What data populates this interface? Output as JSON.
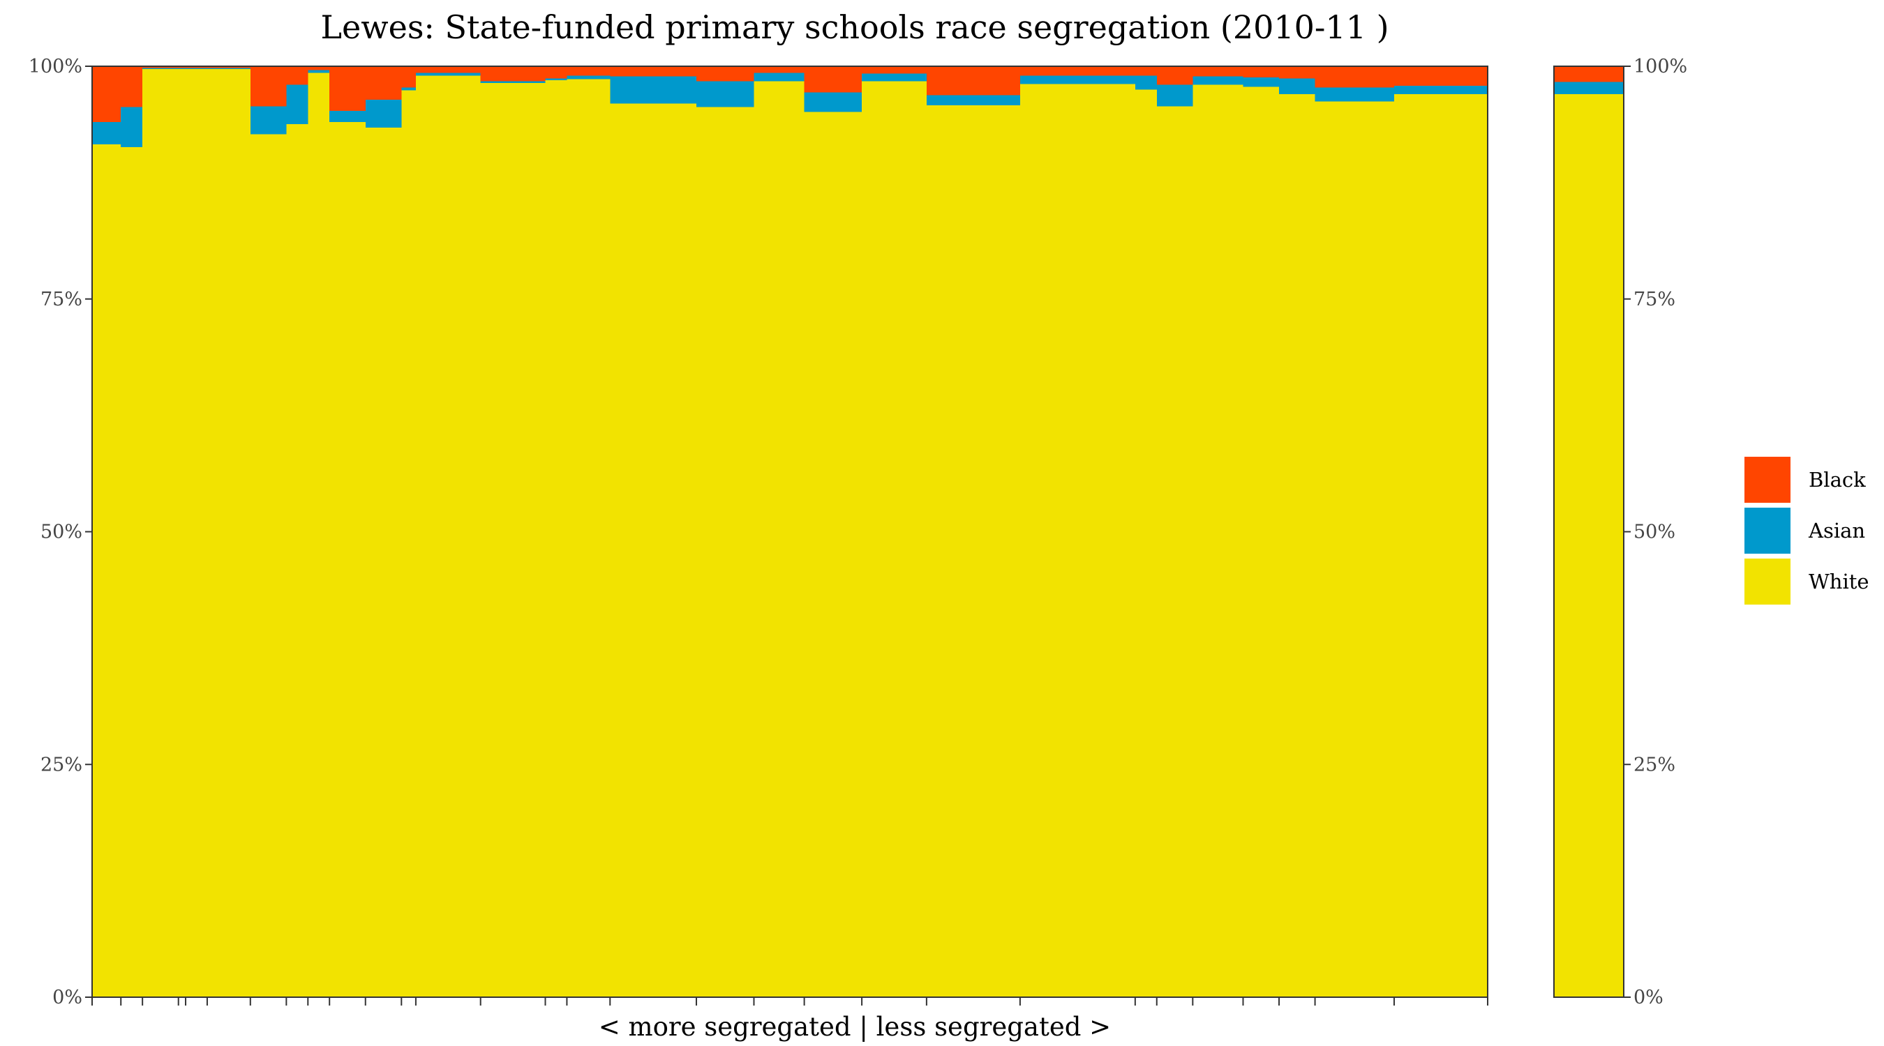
{
  "chart_data": {
    "type": "bar",
    "stacked": true,
    "variable_width": true,
    "title": "Lewes: State-funded primary schools race segregation (2010-11 )",
    "xlabel": "< more segregated | less segregated >",
    "ylabel": "",
    "ylim": [
      0,
      100
    ],
    "y_ticks": [
      "0%",
      "25%",
      "50%",
      "75%",
      "100%"
    ],
    "grid": false,
    "legend_position": "right",
    "series": [
      {
        "name": "White",
        "color": "#F2E300"
      },
      {
        "name": "Asian",
        "color": "#0099CC"
      },
      {
        "name": "Black",
        "color": "#FF4500"
      }
    ],
    "legend_order": [
      "Black",
      "Asian",
      "White"
    ],
    "bars": [
      {
        "w": 4,
        "white": 91.6,
        "asian": 2.4,
        "black": 6.0
      },
      {
        "w": 3,
        "white": 91.3,
        "asian": 4.3,
        "black": 4.4
      },
      {
        "w": 5,
        "white": 99.7,
        "asian": 0.1,
        "black": 0.2
      },
      {
        "w": 1,
        "white": 99.7,
        "asian": 0.1,
        "black": 0.2
      },
      {
        "w": 3,
        "white": 99.7,
        "asian": 0.1,
        "black": 0.2
      },
      {
        "w": 6,
        "white": 99.7,
        "asian": 0.1,
        "black": 0.2
      },
      {
        "w": 5,
        "white": 92.7,
        "asian": 3.0,
        "black": 4.3
      },
      {
        "w": 3,
        "white": 93.8,
        "asian": 4.2,
        "black": 2.0
      },
      {
        "w": 3,
        "white": 99.3,
        "asian": 0.3,
        "black": 0.4
      },
      {
        "w": 5,
        "white": 94.0,
        "asian": 1.2,
        "black": 4.8
      },
      {
        "w": 5,
        "white": 93.4,
        "asian": 3.0,
        "black": 3.6
      },
      {
        "w": 2,
        "white": 97.4,
        "asian": 0.3,
        "black": 2.3
      },
      {
        "w": 9,
        "white": 99.0,
        "asian": 0.3,
        "black": 0.7
      },
      {
        "w": 9,
        "white": 98.2,
        "asian": 0.2,
        "black": 1.6
      },
      {
        "w": 3,
        "white": 98.5,
        "asian": 0.2,
        "black": 1.3
      },
      {
        "w": 6,
        "white": 98.6,
        "asian": 0.4,
        "black": 1.0
      },
      {
        "w": 12,
        "white": 96.0,
        "asian": 2.9,
        "black": 1.1
      },
      {
        "w": 8,
        "white": 95.6,
        "asian": 2.8,
        "black": 1.6
      },
      {
        "w": 7,
        "white": 98.4,
        "asian": 0.9,
        "black": 0.7
      },
      {
        "w": 8,
        "white": 95.1,
        "asian": 2.1,
        "black": 2.8
      },
      {
        "w": 9,
        "white": 98.4,
        "asian": 0.8,
        "black": 0.8
      },
      {
        "w": 13,
        "white": 95.8,
        "asian": 1.1,
        "black": 3.1
      },
      {
        "w": 16,
        "white": 98.1,
        "asian": 0.9,
        "black": 1.0
      },
      {
        "w": 3,
        "white": 97.5,
        "asian": 1.5,
        "black": 1.0
      },
      {
        "w": 5,
        "white": 95.7,
        "asian": 2.3,
        "black": 2.0
      },
      {
        "w": 7,
        "white": 98.0,
        "asian": 0.9,
        "black": 1.1
      },
      {
        "w": 5,
        "white": 97.8,
        "asian": 1.0,
        "black": 1.2
      },
      {
        "w": 5,
        "white": 97.0,
        "asian": 1.7,
        "black": 1.3
      },
      {
        "w": 11,
        "white": 96.2,
        "asian": 1.5,
        "black": 2.3
      },
      {
        "w": 13,
        "white": 97.0,
        "asian": 0.9,
        "black": 2.1
      }
    ],
    "overall": {
      "white": 97.0,
      "asian": 1.3,
      "black": 1.7
    }
  }
}
